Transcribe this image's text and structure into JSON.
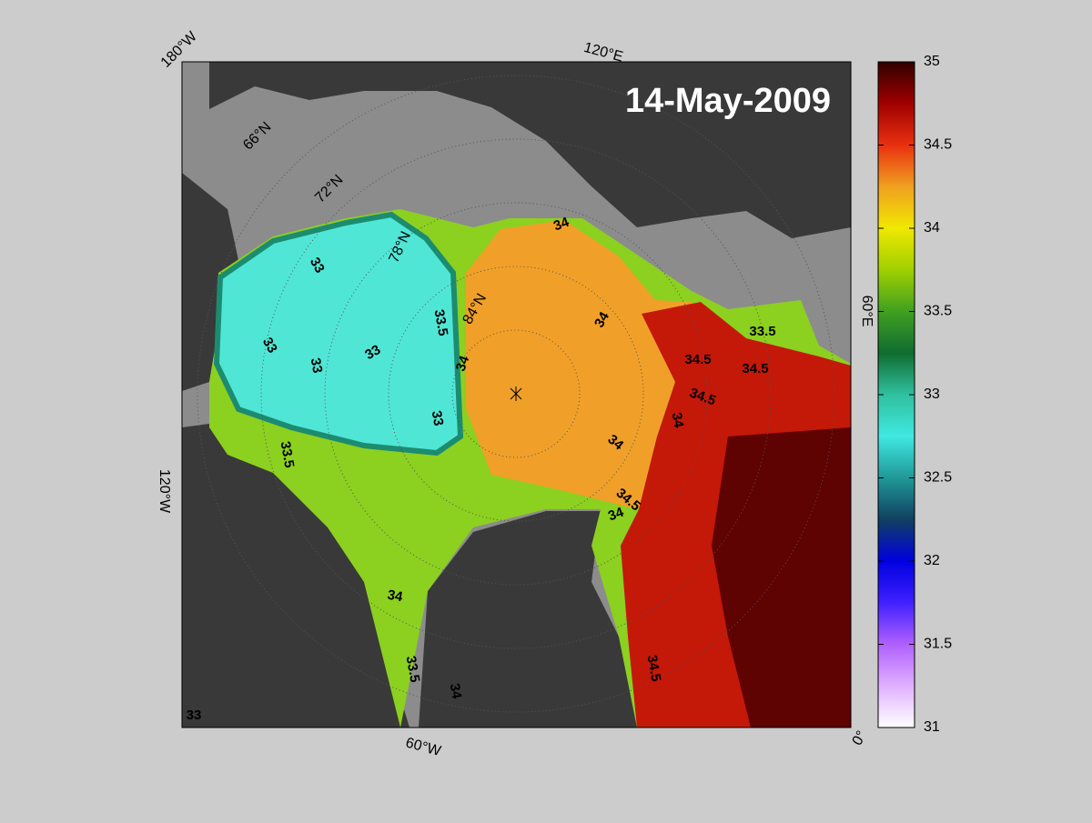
{
  "title": "14-May-2009",
  "colorbar": {
    "lim": [
      31,
      35
    ],
    "ticks": [
      31,
      31.5,
      32,
      32.5,
      33,
      33.5,
      34,
      34.5,
      35
    ],
    "colormap": [
      "#ffffff",
      "#e0b0ff",
      "#b060ff",
      "#4020ff",
      "#0000e0",
      "#104060",
      "#209898",
      "#40e8e0",
      "#30c0a0",
      "#106c30",
      "#40a020",
      "#a0d000",
      "#f0e800",
      "#f0a020",
      "#e83010",
      "#a00000",
      "#300000"
    ]
  },
  "grid_labels": [
    "180°W",
    "120°E",
    "60°E",
    "0°",
    "60°W",
    "120°W",
    "66°N",
    "72°N",
    "78°N",
    "84°N"
  ],
  "contour_labels": [
    34,
    34,
    33,
    33,
    33,
    33,
    33,
    33.5,
    34,
    34.5,
    34.5,
    34.5,
    34,
    34,
    33.5,
    33.5,
    34.5,
    34,
    34,
    33.5,
    34,
    34.5,
    33
  ]
}
